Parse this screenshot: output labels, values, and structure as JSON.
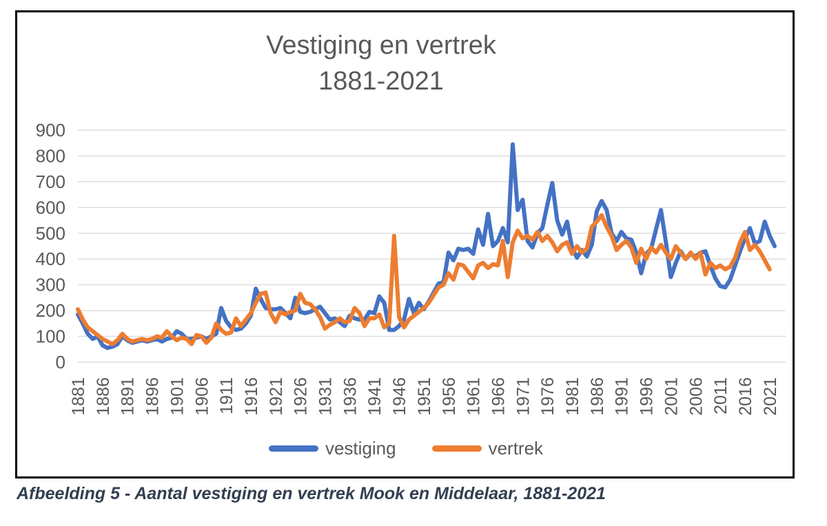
{
  "figure": {
    "title_line1": "Vestiging en vertrek",
    "title_line2": "1881-2021",
    "caption": "Afbeelding 5 - Aantal vestiging en vertrek Mook en Middelaar, 1881-2021"
  },
  "legend": {
    "items": [
      {
        "label": "vestiging",
        "color": "#4472C4"
      },
      {
        "label": "vertrek",
        "color": "#ED7D31"
      }
    ]
  },
  "colors": {
    "vestiging_line": "#4472C4",
    "vertrek_line": "#ED7D31",
    "gridline": "#D9D9D9",
    "axis_text": "#595959",
    "title_text": "#595959",
    "caption_text": "#333F50",
    "frame_border": "#000000",
    "background": "#FFFFFF"
  },
  "chart_data": {
    "type": "line",
    "title": "Vestiging en vertrek 1881-2021",
    "xlabel": "",
    "ylabel": "",
    "x_start": 1881,
    "x_end": 2021,
    "x_tick_step": 5,
    "x_tick_labels": [
      "1881",
      "1886",
      "1891",
      "1896",
      "1901",
      "1906",
      "1911",
      "1916",
      "1921",
      "1926",
      "1931",
      "1936",
      "1941",
      "1946",
      "1951",
      "1956",
      "1961",
      "1966",
      "1971",
      "1976",
      "1981",
      "1986",
      "1991",
      "1996",
      "2001",
      "2006",
      "2011",
      "2016",
      "2021"
    ],
    "y_ticks": [
      0,
      100,
      200,
      300,
      400,
      500,
      600,
      700,
      800,
      900
    ],
    "ylim": [
      0,
      900
    ],
    "grid": true,
    "legend_position": "bottom",
    "series": [
      {
        "name": "vestiging",
        "color": "#4472C4",
        "values": [
          185,
          150,
          110,
          90,
          100,
          65,
          55,
          60,
          70,
          100,
          85,
          75,
          80,
          85,
          80,
          85,
          90,
          80,
          90,
          95,
          120,
          110,
          90,
          90,
          95,
          100,
          90,
          100,
          110,
          210,
          160,
          135,
          125,
          130,
          150,
          180,
          285,
          245,
          210,
          205,
          205,
          210,
          190,
          170,
          250,
          195,
          190,
          195,
          205,
          215,
          190,
          165,
          170,
          155,
          140,
          180,
          170,
          165,
          165,
          195,
          190,
          255,
          230,
          125,
          125,
          140,
          165,
          245,
          190,
          230,
          205,
          235,
          270,
          305,
          310,
          425,
          395,
          440,
          435,
          440,
          420,
          515,
          455,
          575,
          450,
          470,
          520,
          465,
          845,
          590,
          630,
          470,
          445,
          500,
          520,
          610,
          695,
          550,
          495,
          545,
          445,
          405,
          435,
          410,
          455,
          585,
          625,
          590,
          500,
          470,
          505,
          480,
          475,
          425,
          345,
          420,
          440,
          515,
          590,
          465,
          330,
          385,
          430,
          400,
          420,
          410,
          425,
          430,
          375,
          325,
          295,
          290,
          320,
          375,
          430,
          480,
          520,
          460,
          470,
          545,
          490,
          450
        ]
      },
      {
        "name": "vertrek",
        "color": "#ED7D31",
        "values": [
          205,
          165,
          135,
          120,
          105,
          90,
          80,
          70,
          85,
          110,
          90,
          80,
          85,
          90,
          85,
          90,
          100,
          95,
          120,
          100,
          85,
          95,
          90,
          70,
          105,
          100,
          75,
          95,
          150,
          125,
          110,
          115,
          170,
          140,
          165,
          190,
          230,
          265,
          270,
          190,
          155,
          195,
          185,
          195,
          200,
          265,
          230,
          225,
          205,
          175,
          130,
          145,
          155,
          170,
          155,
          160,
          210,
          190,
          140,
          170,
          170,
          185,
          135,
          150,
          490,
          175,
          135,
          165,
          180,
          195,
          210,
          230,
          260,
          290,
          300,
          345,
          320,
          380,
          375,
          350,
          325,
          375,
          385,
          365,
          380,
          375,
          470,
          330,
          465,
          510,
          480,
          490,
          475,
          505,
          470,
          490,
          465,
          430,
          455,
          465,
          420,
          450,
          425,
          440,
          525,
          545,
          570,
          525,
          490,
          435,
          455,
          470,
          445,
          385,
          440,
          400,
          445,
          425,
          455,
          425,
          400,
          450,
          425,
          400,
          425,
          400,
          425,
          340,
          385,
          365,
          375,
          360,
          370,
          405,
          465,
          505,
          435,
          455,
          430,
          395,
          360
        ]
      }
    ]
  }
}
